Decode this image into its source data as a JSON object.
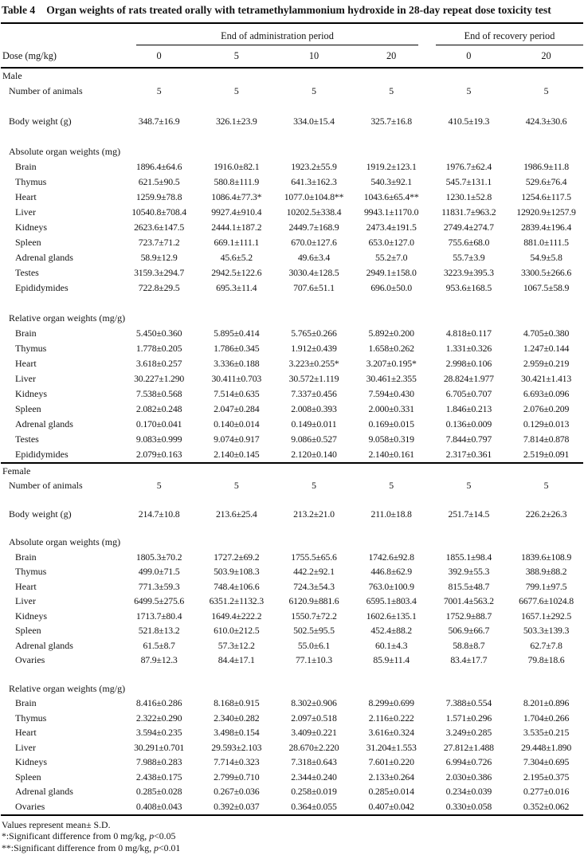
{
  "title": {
    "label": "Table 4",
    "text": "Organ weights of rats treated orally with tetramethylammonium hydroxide in 28-day repeat dose toxicity test"
  },
  "header": {
    "groups": [
      {
        "label": "End of administration period",
        "span": 4
      },
      {
        "label": "End of recovery period",
        "span": 2
      }
    ],
    "dose_label": "Dose (mg/kg)",
    "doses": [
      "0",
      "5",
      "10",
      "20",
      "0",
      "20"
    ]
  },
  "sections": [
    {
      "name": "Male",
      "rows": [
        {
          "type": "data",
          "label": "Number of animals",
          "values": [
            "5",
            "5",
            "5",
            "5",
            "5",
            "5"
          ]
        },
        {
          "type": "gap"
        },
        {
          "type": "data",
          "label": "Body weight (g)",
          "values": [
            "348.7±16.9",
            "326.1±23.9",
            "334.0±15.4",
            "325.7±16.8",
            "410.5±19.3",
            "424.3±30.6"
          ]
        },
        {
          "type": "gap"
        },
        {
          "type": "subheader",
          "label": "Absolute organ weights (mg)"
        },
        {
          "type": "data",
          "label": "Brain",
          "values": [
            "1896.4±64.6",
            "1916.0±82.1",
            "1923.2±55.9",
            "1919.2±123.1",
            "1976.7±62.4",
            "1986.9±11.8"
          ]
        },
        {
          "type": "data",
          "label": "Thymus",
          "values": [
            "621.5±90.5",
            "580.8±111.9",
            "641.3±162.3",
            "540.3±92.1",
            "545.7±131.1",
            "529.6±76.4"
          ]
        },
        {
          "type": "data",
          "label": "Heart",
          "values": [
            "1259.9±78.8",
            "1086.4±77.3*",
            "1077.0±104.8**",
            "1043.6±65.4**",
            "1230.1±52.8",
            "1254.6±117.5"
          ]
        },
        {
          "type": "data",
          "label": "Liver",
          "values": [
            "10540.8±708.4",
            "9927.4±910.4",
            "10202.5±338.4",
            "9943.1±1170.0",
            "11831.7±963.2",
            "12920.9±1257.9"
          ]
        },
        {
          "type": "data",
          "label": "Kidneys",
          "values": [
            "2623.6±147.5",
            "2444.1±187.2",
            "2449.7±168.9",
            "2473.4±191.5",
            "2749.4±274.7",
            "2839.4±196.4"
          ]
        },
        {
          "type": "data",
          "label": "Spleen",
          "values": [
            "723.7±71.2",
            "669.1±111.1",
            "670.0±127.6",
            "653.0±127.0",
            "755.6±68.0",
            "881.0±111.5"
          ]
        },
        {
          "type": "data",
          "label": "Adrenal glands",
          "values": [
            "58.9±12.9",
            "45.6±5.2",
            "49.6±3.4",
            "55.2±7.0",
            "55.7±3.9",
            "54.9±5.8"
          ]
        },
        {
          "type": "data",
          "label": "Testes",
          "values": [
            "3159.3±294.7",
            "2942.5±122.6",
            "3030.4±128.5",
            "2949.1±158.0",
            "3223.9±395.3",
            "3300.5±266.6"
          ]
        },
        {
          "type": "data",
          "label": "Epididymides",
          "values": [
            "722.8±29.5",
            "695.3±11.4",
            "707.6±51.1",
            "696.0±50.0",
            "953.6±168.5",
            "1067.5±58.9"
          ]
        },
        {
          "type": "gap"
        },
        {
          "type": "subheader",
          "label": "Relative organ weights (mg/g)"
        },
        {
          "type": "data",
          "label": "Brain",
          "values": [
            "5.450±0.360",
            "5.895±0.414",
            "5.765±0.266",
            "5.892±0.200",
            "4.818±0.117",
            "4.705±0.380"
          ]
        },
        {
          "type": "data",
          "label": "Thymus",
          "values": [
            "1.778±0.205",
            "1.786±0.345",
            "1.912±0.439",
            "1.658±0.262",
            "1.331±0.326",
            "1.247±0.144"
          ]
        },
        {
          "type": "data",
          "label": "Heart",
          "values": [
            "3.618±0.257",
            "3.336±0.188",
            "3.223±0.255*",
            "3.207±0.195*",
            "2.998±0.106",
            "2.959±0.219"
          ]
        },
        {
          "type": "data",
          "label": "Liver",
          "values": [
            "30.227±1.290",
            "30.411±0.703",
            "30.572±1.119",
            "30.461±2.355",
            "28.824±1.977",
            "30.421±1.413"
          ]
        },
        {
          "type": "data",
          "label": "Kidneys",
          "values": [
            "7.538±0.568",
            "7.514±0.635",
            "7.337±0.456",
            "7.594±0.430",
            "6.705±0.707",
            "6.693±0.096"
          ]
        },
        {
          "type": "data",
          "label": "Spleen",
          "values": [
            "2.082±0.248",
            "2.047±0.284",
            "2.008±0.393",
            "2.000±0.331",
            "1.846±0.213",
            "2.076±0.209"
          ]
        },
        {
          "type": "data",
          "label": "Adrenal glands",
          "values": [
            "0.170±0.041",
            "0.140±0.014",
            "0.149±0.011",
            "0.169±0.015",
            "0.136±0.009",
            "0.129±0.013"
          ]
        },
        {
          "type": "data",
          "label": "Testes",
          "values": [
            "9.083±0.999",
            "9.074±0.917",
            "9.086±0.527",
            "9.058±0.319",
            "7.844±0.797",
            "7.814±0.878"
          ]
        },
        {
          "type": "data",
          "label": "Epididymides",
          "values": [
            "2.079±0.163",
            "2.140±0.145",
            "2.120±0.140",
            "2.140±0.161",
            "2.317±0.361",
            "2.519±0.091"
          ]
        }
      ]
    },
    {
      "name": "Female",
      "rows": [
        {
          "type": "data",
          "label": "Number of animals",
          "values": [
            "5",
            "5",
            "5",
            "5",
            "5",
            "5"
          ]
        },
        {
          "type": "gap"
        },
        {
          "type": "data",
          "label": "Body weight (g)",
          "values": [
            "214.7±10.8",
            "213.6±25.4",
            "213.2±21.0",
            "211.0±18.8",
            "251.7±14.5",
            "226.2±26.3"
          ]
        },
        {
          "type": "gap"
        },
        {
          "type": "subheader",
          "label": "Absolute organ weights (mg)"
        },
        {
          "type": "data",
          "label": "Brain",
          "values": [
            "1805.3±70.2",
            "1727.2±69.2",
            "1755.5±65.6",
            "1742.6±92.8",
            "1855.1±98.4",
            "1839.6±108.9"
          ]
        },
        {
          "type": "data",
          "label": "Thymus",
          "values": [
            "499.0±71.5",
            "503.9±108.3",
            "442.2±92.1",
            "446.8±62.9",
            "392.9±55.3",
            "388.9±88.2"
          ]
        },
        {
          "type": "data",
          "label": "Heart",
          "values": [
            "771.3±59.3",
            "748.4±106.6",
            "724.3±54.3",
            "763.0±100.9",
            "815.5±48.7",
            "799.1±97.5"
          ]
        },
        {
          "type": "data",
          "label": "Liver",
          "values": [
            "6499.5±275.6",
            "6351.2±1132.3",
            "6120.9±881.6",
            "6595.1±803.4",
            "7001.4±563.2",
            "6677.6±1024.8"
          ]
        },
        {
          "type": "data",
          "label": "Kidneys",
          "values": [
            "1713.7±80.4",
            "1649.4±222.2",
            "1550.7±72.2",
            "1602.6±135.1",
            "1752.9±88.7",
            "1657.1±292.5"
          ]
        },
        {
          "type": "data",
          "label": "Spleen",
          "values": [
            "521.8±13.2",
            "610.0±212.5",
            "502.5±95.5",
            "452.4±88.2",
            "506.9±66.7",
            "503.3±139.3"
          ]
        },
        {
          "type": "data",
          "label": "Adrenal glands",
          "values": [
            "61.5±8.7",
            "57.3±12.2",
            "55.0±6.1",
            "60.1±4.3",
            "58.8±8.7",
            "62.7±7.8"
          ]
        },
        {
          "type": "data",
          "label": "Ovaries",
          "values": [
            "87.9±12.3",
            "84.4±17.1",
            "77.1±10.3",
            "85.9±11.4",
            "83.4±17.7",
            "79.8±18.6"
          ]
        },
        {
          "type": "gap"
        },
        {
          "type": "subheader",
          "label": "Relative organ weights (mg/g)"
        },
        {
          "type": "data",
          "label": "Brain",
          "values": [
            "8.416±0.286",
            "8.168±0.915",
            "8.302±0.906",
            "8.299±0.699",
            "7.388±0.554",
            "8.201±0.896"
          ]
        },
        {
          "type": "data",
          "label": "Thymus",
          "values": [
            "2.322±0.290",
            "2.340±0.282",
            "2.097±0.518",
            "2.116±0.222",
            "1.571±0.296",
            "1.704±0.266"
          ]
        },
        {
          "type": "data",
          "label": "Heart",
          "values": [
            "3.594±0.235",
            "3.498±0.154",
            "3.409±0.221",
            "3.616±0.324",
            "3.249±0.285",
            "3.535±0.215"
          ]
        },
        {
          "type": "data",
          "label": "Liver",
          "values": [
            "30.291±0.701",
            "29.593±2.103",
            "28.670±2.220",
            "31.204±1.553",
            "27.812±1.488",
            "29.448±1.890"
          ]
        },
        {
          "type": "data",
          "label": "Kidneys",
          "values": [
            "7.988±0.283",
            "7.714±0.323",
            "7.318±0.643",
            "7.601±0.220",
            "6.994±0.726",
            "7.304±0.695"
          ]
        },
        {
          "type": "data",
          "label": "Spleen",
          "values": [
            "2.438±0.175",
            "2.799±0.710",
            "2.344±0.240",
            "2.133±0.264",
            "2.030±0.386",
            "2.195±0.375"
          ]
        },
        {
          "type": "data",
          "label": "Adrenal glands",
          "values": [
            "0.285±0.028",
            "0.267±0.036",
            "0.258±0.019",
            "0.285±0.014",
            "0.234±0.039",
            "0.277±0.016"
          ]
        },
        {
          "type": "data",
          "label": "Ovaries",
          "values": [
            "0.408±0.043",
            "0.392±0.037",
            "0.364±0.055",
            "0.407±0.042",
            "0.330±0.058",
            "0.352±0.062"
          ]
        }
      ]
    }
  ],
  "footnotes": {
    "mean_sd": "Values represent mean± S.D.",
    "sig1": {
      "pre": "*:Significant difference from 0 mg/kg, ",
      "p": "p",
      "post": "<0.05"
    },
    "sig2": {
      "pre": "**:Significant difference from 0 mg/kg, ",
      "p": "p",
      "post": "<0.01"
    }
  }
}
